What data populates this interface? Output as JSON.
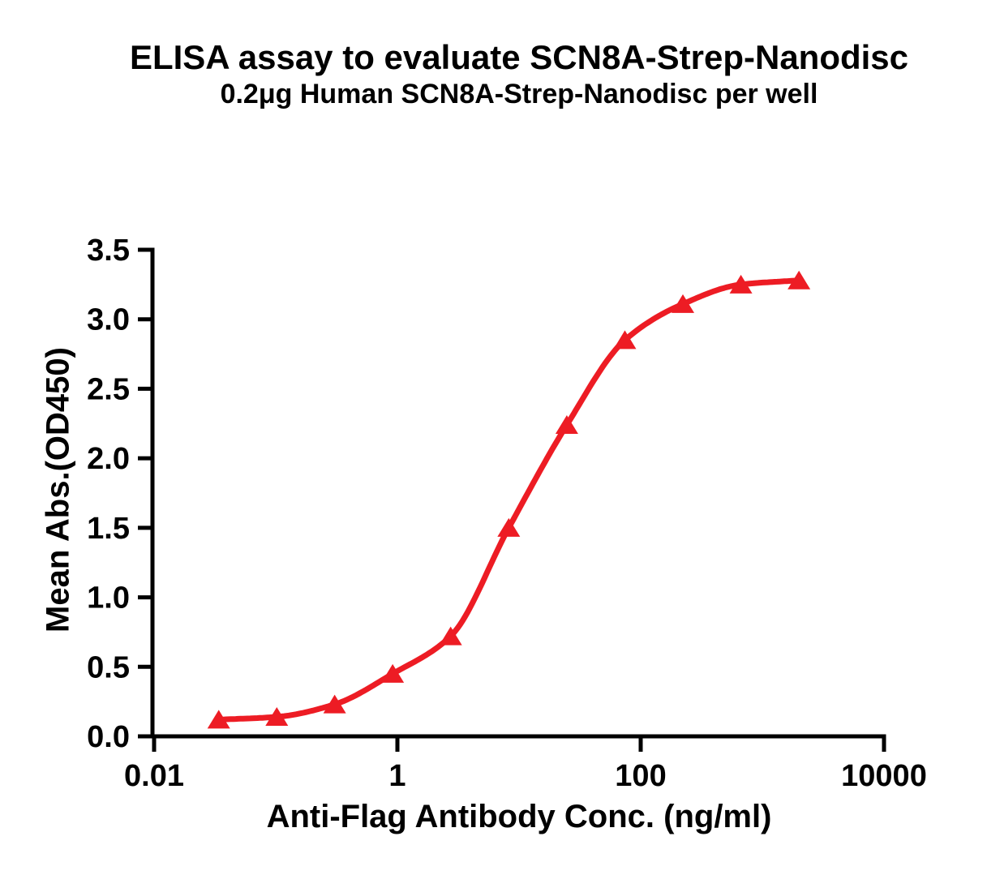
{
  "chart_data": {
    "type": "line",
    "title": "ELISA assay to evaluate SCN8A-Strep-Nanodisc",
    "subtitle": "0.2μg Human SCN8A-Strep-Nanodisc per well",
    "xlabel": "Anti-Flag Antibody Conc. (ng/ml)",
    "ylabel": "Mean Abs.(OD450)",
    "x_scale": "log10",
    "xlim": [
      0.01,
      10000
    ],
    "ylim": [
      0.0,
      3.5
    ],
    "x_ticks": [
      0.01,
      1,
      100,
      10000
    ],
    "x_tick_labels": [
      "0.01",
      "1",
      "100",
      "10000"
    ],
    "y_ticks": [
      0.0,
      0.5,
      1.0,
      1.5,
      2.0,
      2.5,
      3.0,
      3.5
    ],
    "y_tick_labels": [
      "0.0",
      "0.5",
      "1.0",
      "1.5",
      "2.0",
      "2.5",
      "3.0",
      "3.5"
    ],
    "grid": false,
    "legend": false,
    "series": [
      {
        "marker": "triangle-up",
        "color": "#ED1C24",
        "x": [
          0.034,
          0.102,
          0.305,
          0.914,
          2.74,
          8.23,
          24.7,
          74.1,
          222.2,
          666.7,
          2000
        ],
        "y": [
          0.12,
          0.14,
          0.23,
          0.45,
          0.72,
          1.5,
          2.24,
          2.85,
          3.11,
          3.25,
          3.28
        ]
      }
    ]
  },
  "colors": {
    "curve": "#ED1C24",
    "axis": "#000000",
    "text": "#000000",
    "background": "#ffffff"
  }
}
